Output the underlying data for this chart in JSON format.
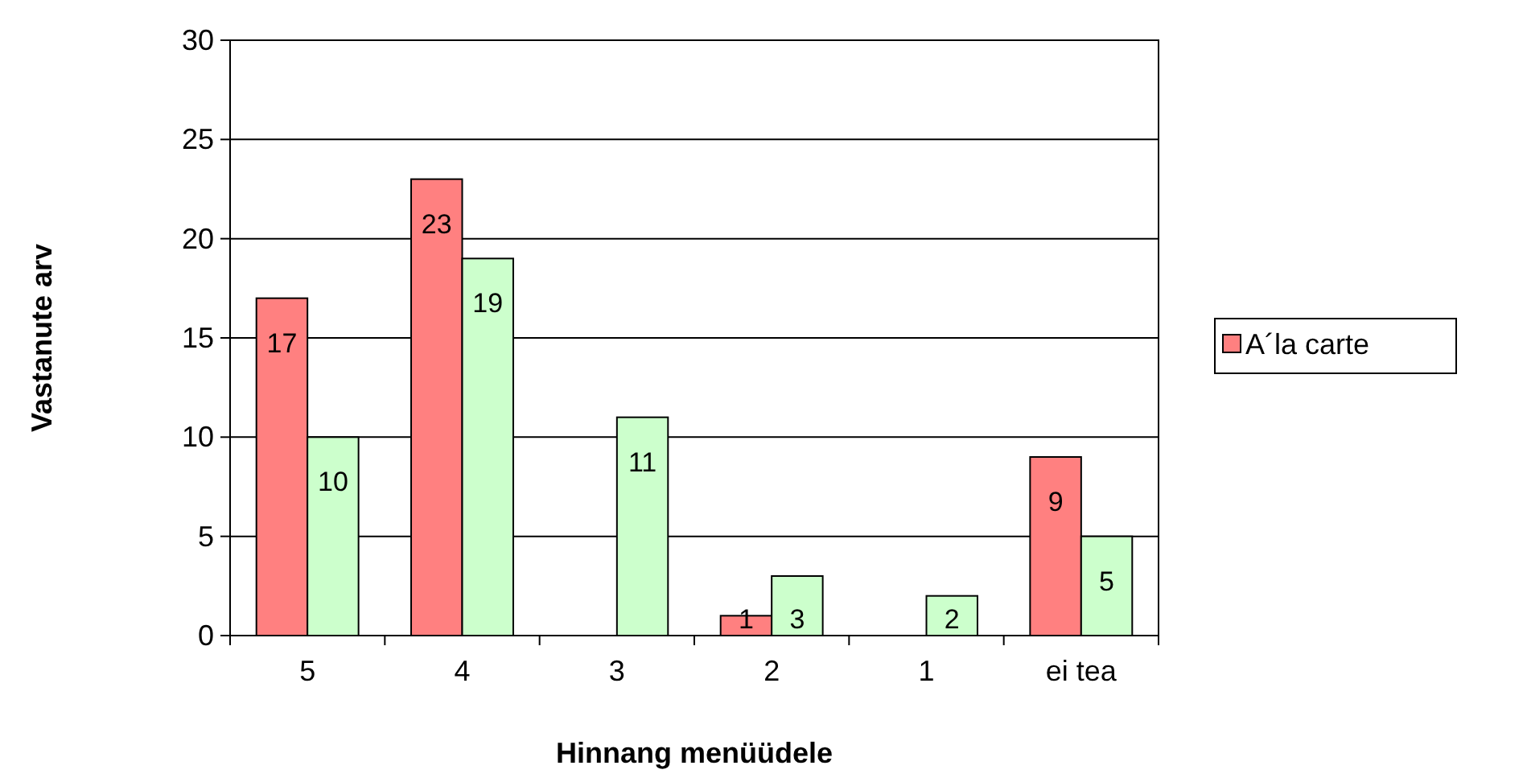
{
  "chart_data": {
    "type": "bar",
    "xlabel": "Hinnang menüüdele",
    "ylabel": "Vastanute arv",
    "categories": [
      "5",
      "4",
      "3",
      "2",
      "1",
      "ei tea"
    ],
    "series": [
      {
        "name": "A´la carte",
        "color": "#ff8080",
        "values": [
          17,
          23,
          null,
          1,
          null,
          9
        ]
      },
      {
        "color": "#ccffcc",
        "values": [
          10,
          19,
          11,
          3,
          2,
          5
        ]
      }
    ],
    "ylim": [
      0,
      30
    ],
    "yticks": [
      0,
      5,
      10,
      15,
      20,
      25,
      30
    ],
    "grid": "y",
    "legend": "right",
    "data_labels": true
  }
}
